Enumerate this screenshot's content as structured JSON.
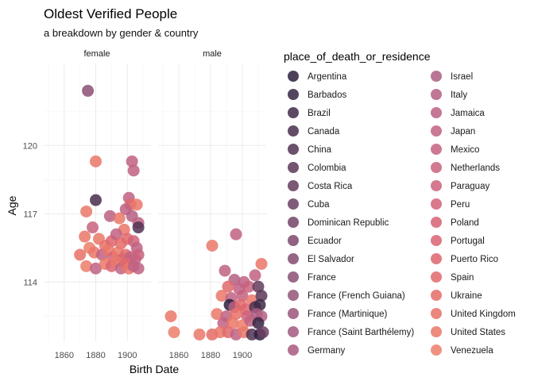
{
  "chart_data": {
    "type": "scatter",
    "title": "Oldest Verified People",
    "subtitle": "a breakdown by gender & country",
    "xlabel": "Birth Date",
    "ylabel": "Age",
    "x_ticks": [
      1860,
      1880,
      1900
    ],
    "y_ticks": [
      114,
      117,
      120
    ],
    "xlim": [
      1847,
      1915
    ],
    "ylim": [
      111.4,
      123.6
    ],
    "facets": [
      "female",
      "male"
    ],
    "grid": true,
    "legend_title": "place_of_death_or_residence",
    "legend_position": "right",
    "legend": [
      {
        "name": "Argentina",
        "color": "#2d1e3e"
      },
      {
        "name": "Barbados",
        "color": "#362443"
      },
      {
        "name": "Brazil",
        "color": "#3f2948"
      },
      {
        "name": "Canada",
        "color": "#482e4d"
      },
      {
        "name": "China",
        "color": "#513352"
      },
      {
        "name": "Colombia",
        "color": "#5a3757"
      },
      {
        "name": "Costa Rica",
        "color": "#623c5c"
      },
      {
        "name": "Cuba",
        "color": "#6b4061"
      },
      {
        "name": "Dominican Republic",
        "color": "#734466"
      },
      {
        "name": "Ecuador",
        "color": "#7b486b"
      },
      {
        "name": "El Salvador",
        "color": "#834c70"
      },
      {
        "name": "France",
        "color": "#8b4f74"
      },
      {
        "name": "France (French Guiana)",
        "color": "#935378"
      },
      {
        "name": "France (Martinique)",
        "color": "#9a567b"
      },
      {
        "name": "France (Saint Barthélemy)",
        "color": "#a1597e"
      },
      {
        "name": "Germany",
        "color": "#a85b80"
      },
      {
        "name": "Israel",
        "color": "#ae5d82"
      },
      {
        "name": "Italy",
        "color": "#b45f83"
      },
      {
        "name": "Jamaica",
        "color": "#ba6083"
      },
      {
        "name": "Japan",
        "color": "#bf6182"
      },
      {
        "name": "Mexico",
        "color": "#c46180"
      },
      {
        "name": "Netherlands",
        "color": "#c9617e"
      },
      {
        "name": "Paraguay",
        "color": "#cd617b"
      },
      {
        "name": "Peru",
        "color": "#d16178"
      },
      {
        "name": "Poland",
        "color": "#d56174"
      },
      {
        "name": "Portugal",
        "color": "#d96371"
      },
      {
        "name": "Puerto Rico",
        "color": "#dd656e"
      },
      {
        "name": "Spain",
        "color": "#e0686b"
      },
      {
        "name": "Ukraine",
        "color": "#e46c69"
      },
      {
        "name": "United Kingdom",
        "color": "#e77168"
      },
      {
        "name": "United States",
        "color": "#ea7768"
      },
      {
        "name": "Venezuela",
        "color": "#ed7e6a"
      }
    ],
    "points": {
      "female": [
        {
          "x": 1875,
          "y": 122.4,
          "c": "France"
        },
        {
          "x": 1880,
          "y": 119.3,
          "c": "United States"
        },
        {
          "x": 1903,
          "y": 119.3,
          "c": "Japan"
        },
        {
          "x": 1904,
          "y": 118.9,
          "c": "Japan"
        },
        {
          "x": 1880,
          "y": 117.6,
          "c": "Canada"
        },
        {
          "x": 1874,
          "y": 117.1,
          "c": "United States"
        },
        {
          "x": 1901,
          "y": 117.7,
          "c": "Japan"
        },
        {
          "x": 1902,
          "y": 117.4,
          "c": "Spain"
        },
        {
          "x": 1906,
          "y": 117.4,
          "c": "United States"
        },
        {
          "x": 1889,
          "y": 116.9,
          "c": "Jamaica"
        },
        {
          "x": 1899,
          "y": 117.2,
          "c": "Japan"
        },
        {
          "x": 1903,
          "y": 116.9,
          "c": "Italy"
        },
        {
          "x": 1907,
          "y": 116.6,
          "c": "Japan"
        },
        {
          "x": 1907,
          "y": 116.4,
          "c": "China"
        },
        {
          "x": 1895,
          "y": 116.8,
          "c": "United States"
        },
        {
          "x": 1898,
          "y": 116.3,
          "c": "United States"
        },
        {
          "x": 1878,
          "y": 116.4,
          "c": "Netherlands"
        },
        {
          "x": 1873,
          "y": 116.0,
          "c": "United States"
        },
        {
          "x": 1882,
          "y": 115.9,
          "c": "United States"
        },
        {
          "x": 1886,
          "y": 115.6,
          "c": "United Kingdom"
        },
        {
          "x": 1890,
          "y": 115.8,
          "c": "Puerto Rico"
        },
        {
          "x": 1893,
          "y": 116.1,
          "c": "Japan"
        },
        {
          "x": 1896,
          "y": 115.7,
          "c": "Ukraine"
        },
        {
          "x": 1900,
          "y": 115.9,
          "c": "Spain"
        },
        {
          "x": 1904,
          "y": 115.8,
          "c": "Peru"
        },
        {
          "x": 1906,
          "y": 115.5,
          "c": "Japan"
        },
        {
          "x": 1870,
          "y": 115.2,
          "c": "United Kingdom"
        },
        {
          "x": 1876,
          "y": 115.5,
          "c": "Venezuela"
        },
        {
          "x": 1879,
          "y": 115.3,
          "c": "United States"
        },
        {
          "x": 1884,
          "y": 115.2,
          "c": "Japan"
        },
        {
          "x": 1888,
          "y": 115.4,
          "c": "United States"
        },
        {
          "x": 1891,
          "y": 115.1,
          "c": "Poland"
        },
        {
          "x": 1894,
          "y": 115.3,
          "c": "United States"
        },
        {
          "x": 1897,
          "y": 115.0,
          "c": "Japan"
        },
        {
          "x": 1899,
          "y": 115.2,
          "c": "Spain"
        },
        {
          "x": 1902,
          "y": 115.1,
          "c": "Japan"
        },
        {
          "x": 1905,
          "y": 115.0,
          "c": "Mexico"
        },
        {
          "x": 1907,
          "y": 115.2,
          "c": "Netherlands"
        },
        {
          "x": 1874,
          "y": 114.7,
          "c": "Venezuela"
        },
        {
          "x": 1880,
          "y": 114.6,
          "c": "Japan"
        },
        {
          "x": 1886,
          "y": 114.8,
          "c": "United States"
        },
        {
          "x": 1890,
          "y": 114.7,
          "c": "Portugal"
        },
        {
          "x": 1893,
          "y": 114.9,
          "c": "United States"
        },
        {
          "x": 1896,
          "y": 114.6,
          "c": "Japan"
        },
        {
          "x": 1899,
          "y": 114.8,
          "c": "Spain"
        },
        {
          "x": 1901,
          "y": 114.6,
          "c": "United States"
        },
        {
          "x": 1904,
          "y": 114.7,
          "c": "Japan"
        },
        {
          "x": 1907,
          "y": 114.6,
          "c": "Japan"
        }
      ],
      "male": [
        {
          "x": 1896,
          "y": 116.1,
          "c": "Japan"
        },
        {
          "x": 1881,
          "y": 115.6,
          "c": "United States"
        },
        {
          "x": 1912,
          "y": 114.8,
          "c": "United States"
        },
        {
          "x": 1889,
          "y": 114.5,
          "c": "Japan"
        },
        {
          "x": 1908,
          "y": 114.3,
          "c": "Japan"
        },
        {
          "x": 1895,
          "y": 114.1,
          "c": "Italy"
        },
        {
          "x": 1901,
          "y": 114.0,
          "c": "Japan"
        },
        {
          "x": 1891,
          "y": 113.8,
          "c": "Spain"
        },
        {
          "x": 1898,
          "y": 113.7,
          "c": "Japan"
        },
        {
          "x": 1904,
          "y": 113.8,
          "c": "Netherlands"
        },
        {
          "x": 1910,
          "y": 113.8,
          "c": "Costa Rica"
        },
        {
          "x": 1887,
          "y": 113.4,
          "c": "United States"
        },
        {
          "x": 1893,
          "y": 113.3,
          "c": "Japan"
        },
        {
          "x": 1900,
          "y": 113.4,
          "c": "Mexico"
        },
        {
          "x": 1906,
          "y": 113.2,
          "c": "United States"
        },
        {
          "x": 1912,
          "y": 113.4,
          "c": "Colombia"
        },
        {
          "x": 1892,
          "y": 113.0,
          "c": "Argentina"
        },
        {
          "x": 1895,
          "y": 112.9,
          "c": "Jamaica"
        },
        {
          "x": 1899,
          "y": 113.0,
          "c": "Spain"
        },
        {
          "x": 1902,
          "y": 112.8,
          "c": "Puerto Rico"
        },
        {
          "x": 1908,
          "y": 112.9,
          "c": "Canada"
        },
        {
          "x": 1911,
          "y": 113.0,
          "c": "Brazil"
        },
        {
          "x": 1855,
          "y": 112.5,
          "c": "United States"
        },
        {
          "x": 1884,
          "y": 112.6,
          "c": "United States"
        },
        {
          "x": 1890,
          "y": 112.5,
          "c": "Japan"
        },
        {
          "x": 1896,
          "y": 112.6,
          "c": "United Kingdom"
        },
        {
          "x": 1903,
          "y": 112.5,
          "c": "Peru"
        },
        {
          "x": 1909,
          "y": 112.6,
          "c": "Germany"
        },
        {
          "x": 1912,
          "y": 112.5,
          "c": "Italy"
        },
        {
          "x": 1888,
          "y": 112.2,
          "c": "Japan"
        },
        {
          "x": 1894,
          "y": 112.2,
          "c": "United States"
        },
        {
          "x": 1900,
          "y": 112.1,
          "c": "Venezuela"
        },
        {
          "x": 1905,
          "y": 112.3,
          "c": "Japan"
        },
        {
          "x": 1910,
          "y": 112.2,
          "c": "Barbados"
        },
        {
          "x": 1857,
          "y": 111.8,
          "c": "Venezuela"
        },
        {
          "x": 1873,
          "y": 111.7,
          "c": "United States"
        },
        {
          "x": 1881,
          "y": 111.7,
          "c": "Ukraine"
        },
        {
          "x": 1886,
          "y": 111.8,
          "c": "United States"
        },
        {
          "x": 1891,
          "y": 111.8,
          "c": "Spain"
        },
        {
          "x": 1896,
          "y": 111.7,
          "c": "Japan"
        },
        {
          "x": 1901,
          "y": 111.8,
          "c": "United States"
        },
        {
          "x": 1906,
          "y": 111.7,
          "c": "China"
        },
        {
          "x": 1911,
          "y": 111.7,
          "c": "Argentina"
        },
        {
          "x": 1913,
          "y": 111.8,
          "c": "Cuba"
        }
      ]
    }
  }
}
